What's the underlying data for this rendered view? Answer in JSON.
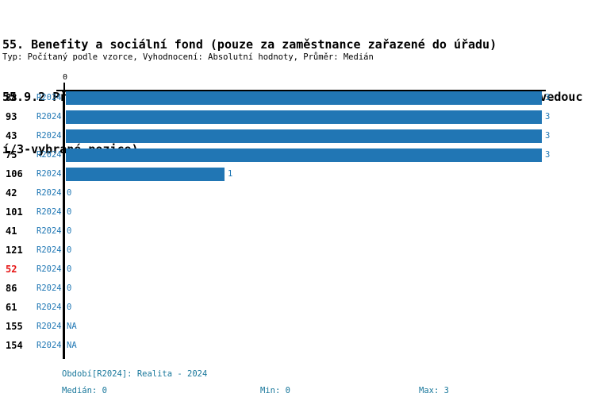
{
  "header": {
    "title_lines": [
      "55. Benefity a sociální fond (pouze za zaměstnance zařazené do úřadu)",
      "55.9.2 Příspěvek na úpravu zevnějšku (ošatné) - určení osob (0-ne/1-všem/2-vedouc",
      "í/3-vybrané pozice)"
    ],
    "meta": "Typ: Počítaný podle vzorce, Vyhodnocení: Absolutní hodnoty, Průměr: Medián"
  },
  "axis": {
    "origin_tick_label": "0"
  },
  "chart_data": {
    "type": "bar",
    "orientation": "horizontal",
    "title": "55. Benefity a sociální fond (pouze za zaměstnance zařazené do úřadu)",
    "subtitle": "55.9.2 Příspěvek na úpravu zevnějšku (ošatné) - určení osob (0-ne/1-všem/2-vedoucí/3-vybrané pozice)",
    "meta": "Typ: Počítaný podle vzorce, Vyhodnocení: Absolutní hodnoty, Průměr: Medián",
    "categories": [
      "88",
      "93",
      "43",
      "75",
      "106",
      "42",
      "101",
      "41",
      "121",
      "52",
      "86",
      "61",
      "155",
      "154"
    ],
    "series": [
      {
        "name": "R2024",
        "values": [
          3,
          3,
          3,
          3,
          1,
          0,
          0,
          0,
          0,
          0,
          0,
          0,
          null,
          null
        ]
      }
    ],
    "value_labels": [
      "3",
      "3",
      "3",
      "3",
      "1",
      "0",
      "0",
      "0",
      "0",
      "0",
      "0",
      "0",
      "NA",
      "NA"
    ],
    "highlighted_categories": [
      "52"
    ],
    "xlim": [
      0,
      3
    ],
    "x_ticks": [
      "0"
    ],
    "grid": false,
    "legend": false,
    "median": 0,
    "min": 0,
    "max": 3,
    "bar_color": "#2176B4"
  },
  "footer": {
    "period": "Období[R2024]: Realita - 2024",
    "median": "Medián: 0",
    "min": "Min: 0",
    "max": "Max: 3"
  },
  "colors": {
    "bar": "#2176B4",
    "period_text": "#1F77B4",
    "value_text": "#1F77B4",
    "highlight_id": "#E61414",
    "footer_text": "#18779B",
    "axis": "#000000"
  }
}
